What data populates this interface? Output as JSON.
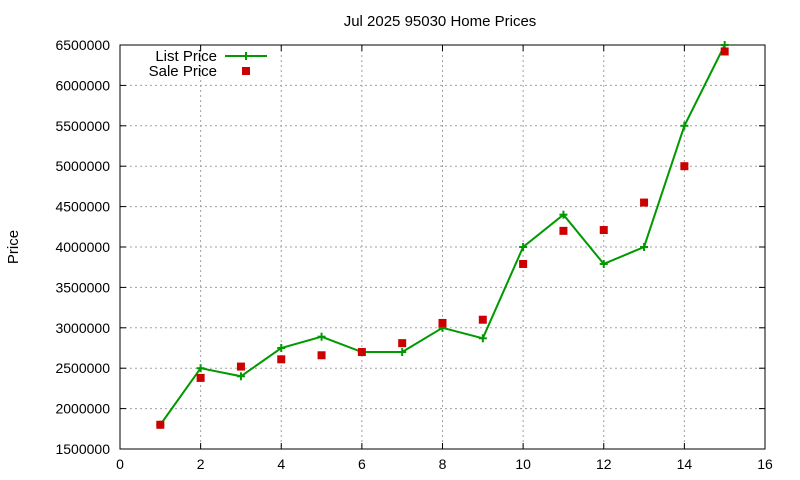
{
  "chart_data": {
    "type": "line",
    "title": "Jul 2025 95030 Home Prices",
    "xlabel": "",
    "ylabel": "Price",
    "xlim": [
      0,
      16
    ],
    "ylim": [
      1500000,
      6500000
    ],
    "xticks": [
      0,
      2,
      4,
      6,
      8,
      10,
      12,
      14,
      16
    ],
    "yticks": [
      1500000,
      2000000,
      2500000,
      3000000,
      3500000,
      4000000,
      4500000,
      5000000,
      5500000,
      6000000,
      6500000
    ],
    "grid": true,
    "legend_position": "top-left",
    "series": [
      {
        "name": "List Price",
        "style": "line+cross",
        "color": "#009900",
        "x": [
          1,
          2,
          3,
          4,
          5,
          6,
          7,
          8,
          9,
          10,
          11,
          12,
          13,
          14,
          15
        ],
        "y": [
          1800000,
          2500000,
          2400000,
          2750000,
          2890000,
          2700000,
          2700000,
          3000000,
          2870000,
          4000000,
          4400000,
          3790000,
          4000000,
          5500000,
          6500000
        ]
      },
      {
        "name": "Sale Price",
        "style": "square-points",
        "color": "#cc0000",
        "x": [
          1,
          2,
          3,
          4,
          5,
          6,
          7,
          8,
          9,
          10,
          11,
          12,
          13,
          14,
          15
        ],
        "y": [
          1800000,
          2380000,
          2520000,
          2610000,
          2660000,
          2700000,
          2810000,
          3060000,
          3100000,
          3790000,
          4200000,
          4210000,
          4550000,
          5000000,
          6420000
        ]
      }
    ]
  }
}
